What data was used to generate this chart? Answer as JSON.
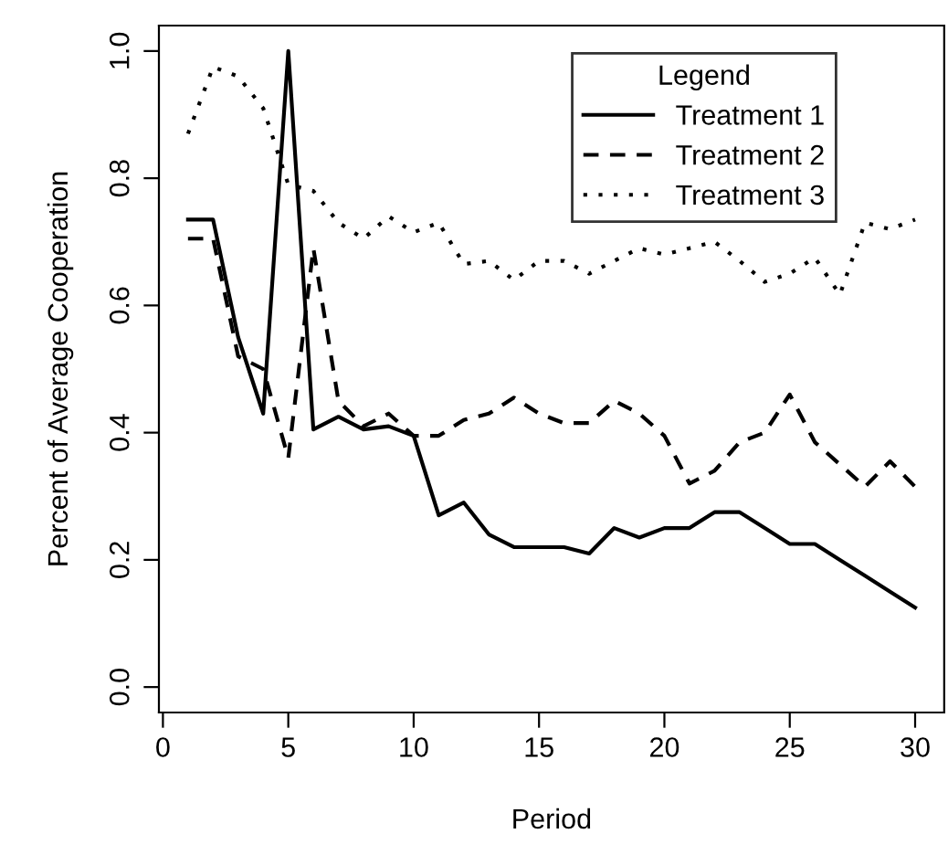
{
  "chart_data": {
    "type": "line",
    "xlabel": "Period",
    "ylabel": "Percent of Average Cooperation",
    "legend_title": "Legend",
    "legend": "top right",
    "grid": false,
    "x": [
      1,
      2,
      3,
      4,
      5,
      6,
      7,
      8,
      9,
      10,
      11,
      12,
      13,
      14,
      15,
      16,
      17,
      18,
      19,
      20,
      21,
      22,
      23,
      24,
      25,
      26,
      27,
      28,
      29,
      30
    ],
    "series": [
      {
        "name": "Treatment 1",
        "color": "#000000",
        "line_style": "solid",
        "values": [
          0.735,
          0.735,
          0.55,
          0.43,
          1.0,
          0.405,
          0.425,
          0.405,
          0.41,
          0.395,
          0.27,
          0.29,
          0.24,
          0.22,
          0.22,
          0.22,
          0.21,
          0.25,
          0.235,
          0.25,
          0.25,
          0.275,
          0.275,
          0.25,
          0.225,
          0.225,
          0.2,
          0.175,
          0.15,
          0.125
        ]
      },
      {
        "name": "Treatment 2",
        "color": "#000000",
        "line_style": "dashed",
        "values": [
          0.705,
          0.705,
          0.52,
          0.5,
          0.36,
          0.69,
          0.45,
          0.41,
          0.43,
          0.395,
          0.395,
          0.42,
          0.43,
          0.455,
          0.43,
          0.415,
          0.415,
          0.45,
          0.43,
          0.395,
          0.32,
          0.34,
          0.385,
          0.4,
          0.46,
          0.385,
          0.35,
          0.315,
          0.355,
          0.315
        ]
      },
      {
        "name": "Treatment 3",
        "color": "#000000",
        "line_style": "dotted",
        "values": [
          0.87,
          0.975,
          0.96,
          0.91,
          0.79,
          0.78,
          0.73,
          0.705,
          0.74,
          0.715,
          0.73,
          0.665,
          0.67,
          0.64,
          0.67,
          0.67,
          0.65,
          0.67,
          0.69,
          0.68,
          0.69,
          0.7,
          0.67,
          0.637,
          0.65,
          0.675,
          0.617,
          0.73,
          0.72,
          0.735
        ]
      }
    ],
    "xlim": [
      -0.16,
      31.16
    ],
    "xticks": [
      0,
      5,
      10,
      15,
      20,
      25,
      30
    ],
    "ylim": [
      -0.04,
      1.04
    ],
    "yticks": [
      {
        "value": 0,
        "label": "0.0"
      },
      0.2,
      0.4,
      0.6,
      0.8,
      {
        "value": 1,
        "label": "1.0"
      }
    ]
  }
}
